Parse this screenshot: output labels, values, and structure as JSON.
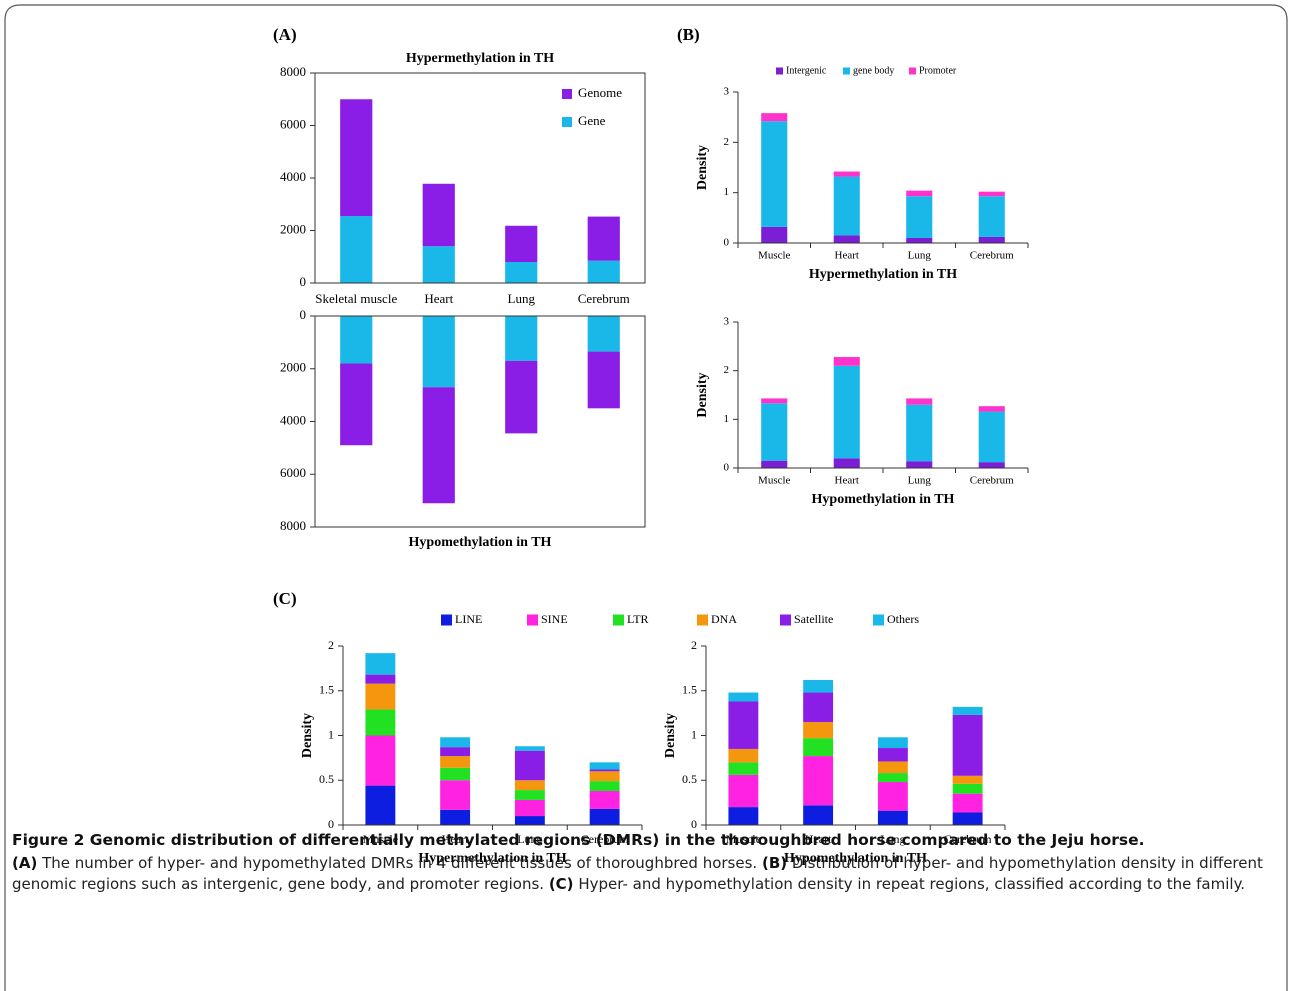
{
  "panels": [
    "(A)",
    "(B)",
    "(C)"
  ],
  "caption": {
    "title": "Figure 2 Genomic distribution of differentially methylated regions (DMRs) in the thoroughbred horse compared to the Jeju horse.",
    "items": [
      {
        "label": "(A)",
        "text": "The number of hyper- and hypomethylated DMRs in 4 different tissues of thoroughbred horses."
      },
      {
        "label": "(B)",
        "text": "Distribution of hyper- and hypomethylation density in different genomic regions such as intergenic, gene body, and promoter regions."
      },
      {
        "label": "(C)",
        "text": "Hyper- and hypomethylation density in repeat regions, classified according to the family."
      }
    ]
  },
  "chart_data": [
    {
      "type": "bar",
      "stacked": true,
      "title": "Hypermethylation in TH",
      "legend": "upper right",
      "categories": [
        "Skeletal muscle",
        "Heart",
        "Lung",
        "Cerebrum"
      ],
      "series": [
        {
          "name": "Gene",
          "color": "#1ab8e8",
          "values": [
            2550,
            1400,
            800,
            850
          ]
        },
        {
          "name": "Genome",
          "color": "#8a1de6",
          "values": [
            4450,
            2380,
            1380,
            1680
          ]
        }
      ],
      "ylim": [
        0,
        8000
      ],
      "yticks": [
        0,
        2000,
        4000,
        6000,
        8000
      ]
    },
    {
      "type": "bar",
      "stacked": true,
      "title": "Hypomethylation in TH",
      "y_reversed": true,
      "categories": [
        null,
        null,
        null,
        null
      ],
      "series": [
        {
          "color": "#1ab8e8",
          "values": [
            1800,
            2700,
            1700,
            1350
          ]
        },
        {
          "color": "#8a1de6",
          "values": [
            3100,
            4400,
            2750,
            2150
          ]
        }
      ],
      "ylim": [
        0,
        8000
      ],
      "yticks": [
        0,
        2000,
        4000,
        6000,
        8000
      ]
    },
    {
      "type": "bar",
      "stacked": true,
      "x_label": "Hypermethylation in TH",
      "y_label": "Density",
      "legend": "top",
      "categories": [
        "Muscle",
        "Heart",
        "Lung",
        "Cerebrum"
      ],
      "series": [
        {
          "name": "Intergenic",
          "color": "#7b1fd6",
          "values": [
            0.32,
            0.15,
            0.1,
            0.12
          ]
        },
        {
          "name": "gene body",
          "color": "#1ab8e8",
          "values": [
            2.1,
            1.17,
            0.83,
            0.81
          ]
        },
        {
          "name": "Promoter",
          "color": "#ff33cc",
          "values": [
            0.16,
            0.1,
            0.11,
            0.09
          ]
        }
      ],
      "ylim": [
        0,
        3
      ],
      "yticks": [
        0,
        1,
        2,
        3
      ]
    },
    {
      "type": "bar",
      "stacked": true,
      "x_label": "Hypomethylation in TH",
      "y_label": "Density",
      "categories": [
        "Muscle",
        "Heart",
        "Lung",
        "Cerebrum"
      ],
      "series": [
        {
          "color": "#7b1fd6",
          "values": [
            0.15,
            0.2,
            0.14,
            0.12
          ]
        },
        {
          "color": "#1ab8e8",
          "values": [
            1.18,
            1.9,
            1.16,
            1.04
          ]
        },
        {
          "color": "#ff33cc",
          "values": [
            0.1,
            0.18,
            0.13,
            0.11
          ]
        }
      ],
      "ylim": [
        0,
        3
      ],
      "yticks": [
        0,
        1,
        2,
        3
      ]
    },
    {
      "type": "bar",
      "stacked": true,
      "x_label": "Hypermethylation in TH",
      "y_label": "Density",
      "legend": "top",
      "categories": [
        "Muscle",
        "Heart",
        "Lung",
        "Cerebrum"
      ],
      "series": [
        {
          "name": "LINE",
          "color": "#0d1ee0",
          "values": [
            0.44,
            0.17,
            0.1,
            0.18
          ]
        },
        {
          "name": "SINE",
          "color": "#ff22e0",
          "values": [
            0.56,
            0.33,
            0.18,
            0.2
          ]
        },
        {
          "name": "LTR",
          "color": "#22e022",
          "values": [
            0.29,
            0.14,
            0.11,
            0.11
          ]
        },
        {
          "name": "DNA",
          "color": "#f5960f",
          "values": [
            0.29,
            0.13,
            0.11,
            0.11
          ]
        },
        {
          "name": "Satellite",
          "color": "#8a1de6",
          "values": [
            0.1,
            0.1,
            0.33,
            0.02
          ]
        },
        {
          "name": "Others",
          "color": "#1ab8e8",
          "values": [
            0.24,
            0.11,
            0.05,
            0.08
          ]
        }
      ],
      "ylim": [
        0,
        2
      ],
      "yticks": [
        0,
        0.5,
        1,
        1.5,
        2
      ]
    },
    {
      "type": "bar",
      "stacked": true,
      "x_label": "Hypomethylation in TH",
      "y_label": "Density",
      "categories": [
        "Muscle",
        "Heart",
        "Lung",
        "Cerebrum"
      ],
      "series": [
        {
          "color": "#0d1ee0",
          "values": [
            0.2,
            0.22,
            0.16,
            0.14
          ]
        },
        {
          "color": "#ff22e0",
          "values": [
            0.36,
            0.55,
            0.32,
            0.21
          ]
        },
        {
          "color": "#22e022",
          "values": [
            0.14,
            0.2,
            0.1,
            0.11
          ]
        },
        {
          "color": "#f5960f",
          "values": [
            0.15,
            0.18,
            0.13,
            0.09
          ]
        },
        {
          "color": "#8a1de6",
          "values": [
            0.53,
            0.33,
            0.15,
            0.68
          ]
        },
        {
          "color": "#1ab8e8",
          "values": [
            0.1,
            0.14,
            0.12,
            0.09
          ]
        }
      ],
      "ylim": [
        0,
        2
      ],
      "yticks": [
        0,
        0.5,
        1,
        1.5,
        2
      ]
    }
  ]
}
